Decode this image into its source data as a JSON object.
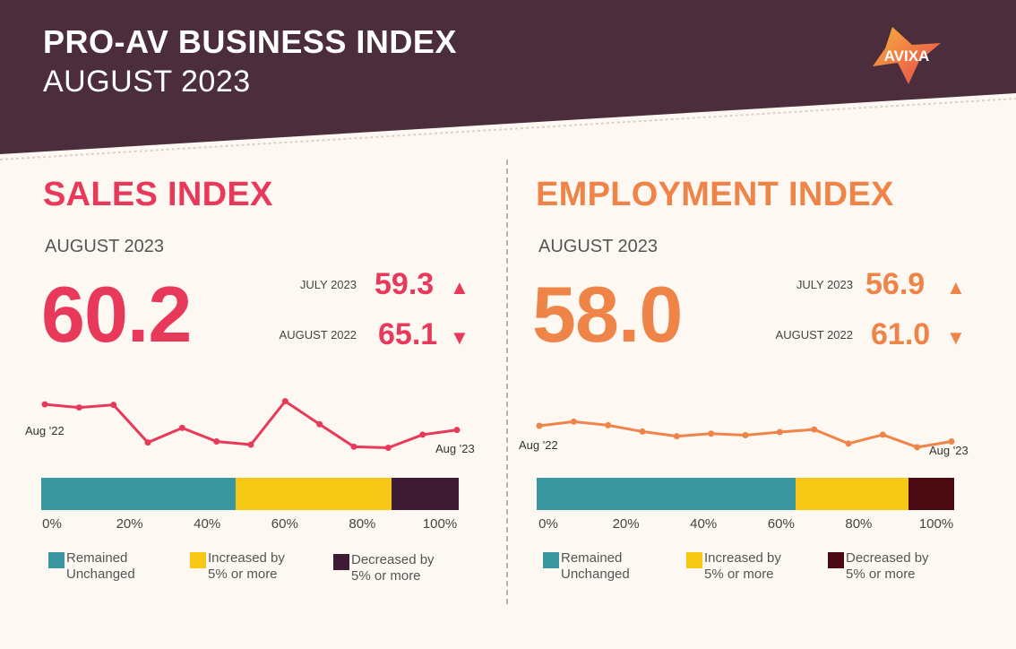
{
  "header": {
    "title": "PRO-AV BUSINESS INDEX",
    "subtitle": "AUGUST 2023",
    "logo_text": "AVIXA",
    "colors": {
      "band": "#4b2d3c",
      "logo_a": "#f4a93a",
      "logo_b": "#e8424f"
    }
  },
  "chart_data": [
    {
      "type": "line",
      "title": "SALES INDEX",
      "period_label": "AUGUST 2023",
      "value": "60.2",
      "color": "#e8395a",
      "comparisons": [
        {
          "label": "JULY 2023",
          "value": "59.3",
          "direction": "up",
          "arrow": "▲"
        },
        {
          "label": "AUGUST 2022",
          "value": "65.1",
          "direction": "down",
          "arrow": "▼"
        }
      ],
      "sparkline": {
        "start_label": "Aug '22",
        "end_label": "Aug '23",
        "values": [
          65.1,
          64.5,
          65.0,
          57.8,
          60.6,
          58.0,
          57.4,
          65.7,
          61.3,
          57.0,
          56.8,
          59.3,
          60.2
        ],
        "ylim": [
          55,
          67
        ]
      },
      "distribution": {
        "type": "stacked-bar",
        "segments": [
          {
            "name": "Remained Unchanged",
            "value": 46.5,
            "color": "#3a97a0"
          },
          {
            "name": "Increased by 5% or more",
            "value": 37.5,
            "color": "#f6c815"
          },
          {
            "name": "Decreased by 5% or more",
            "value": 16.0,
            "color": "#3e1a33"
          }
        ],
        "ticks": [
          "0%",
          "20%",
          "40%",
          "60%",
          "80%",
          "100%"
        ]
      }
    },
    {
      "type": "line",
      "title": "EMPLOYMENT INDEX",
      "period_label": "AUGUST 2023",
      "value": "58.0",
      "color": "#ef8449",
      "comparisons": [
        {
          "label": "JULY 2023",
          "value": "56.9",
          "direction": "up",
          "arrow": "▲"
        },
        {
          "label": "AUGUST 2022",
          "value": "61.0",
          "direction": "down",
          "arrow": "▼"
        }
      ],
      "sparkline": {
        "start_label": "Aug '22",
        "end_label": "Aug '23",
        "values": [
          61.0,
          61.8,
          61.1,
          59.9,
          59.0,
          59.5,
          59.2,
          59.8,
          60.3,
          57.6,
          59.3,
          56.9,
          58.0
        ],
        "ylim": [
          55,
          67
        ]
      },
      "distribution": {
        "type": "stacked-bar",
        "segments": [
          {
            "name": "Remained Unchanged",
            "value": 62.0,
            "color": "#3a97a0"
          },
          {
            "name": "Increased by 5% or more",
            "value": 27.0,
            "color": "#f6c815"
          },
          {
            "name": "Decreased by 5% or more",
            "value": 11.0,
            "color": "#4b0a12"
          }
        ],
        "ticks": [
          "0%",
          "20%",
          "40%",
          "60%",
          "80%",
          "100%"
        ]
      }
    }
  ]
}
